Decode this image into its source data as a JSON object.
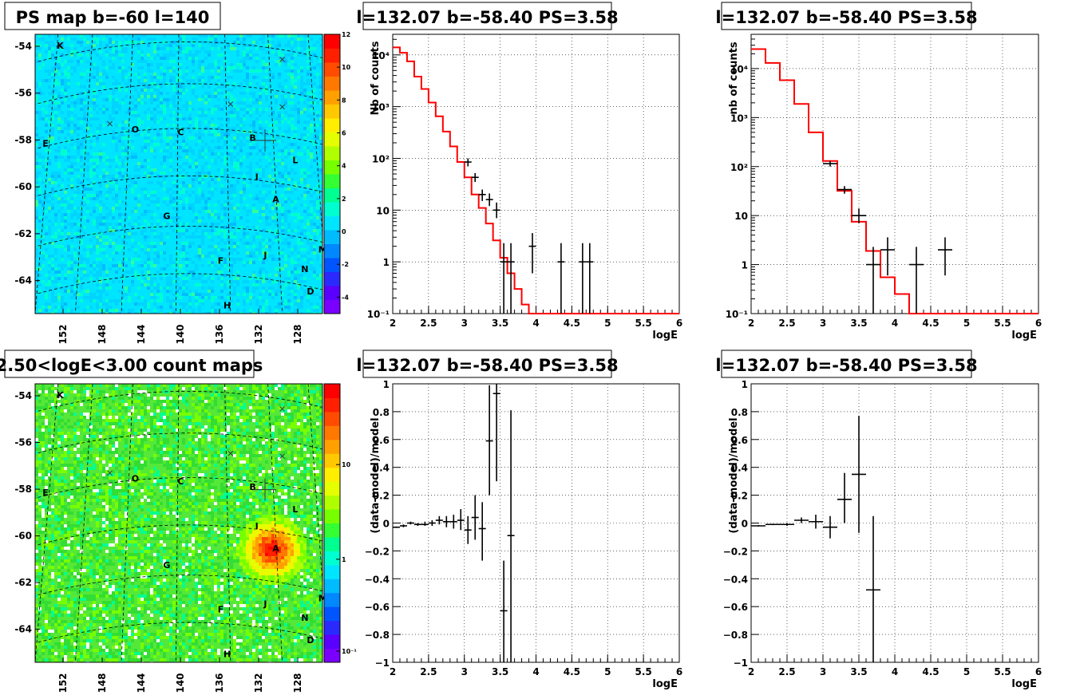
{
  "chart_data": [
    {
      "id": "psmap",
      "type": "heatmap",
      "title": "PS map b=-60 l=140",
      "x_ticks": [
        "152",
        "148",
        "144",
        "140",
        "136",
        "132",
        "128"
      ],
      "y_ticks": [
        "-54",
        "-56",
        "-58",
        "-60",
        "-62",
        "-64"
      ],
      "colorbar_ticks": [
        "12",
        "10",
        "8",
        "6",
        "4",
        "2",
        "0",
        "-2",
        "-4"
      ],
      "sources": [
        "K",
        "O",
        "C",
        "B",
        "E",
        "L",
        "I",
        "A",
        "G",
        "M",
        "F",
        "J",
        "N",
        "D",
        "H"
      ],
      "hot_source": null,
      "scale": "linear",
      "zlim": [
        -5,
        12
      ]
    },
    {
      "id": "countmap",
      "type": "heatmap",
      "title": "2.50<logE<3.00 count maps",
      "x_ticks": [
        "152",
        "148",
        "144",
        "140",
        "136",
        "132",
        "128"
      ],
      "y_ticks": [
        "-54",
        "-56",
        "-58",
        "-60",
        "-62",
        "-64"
      ],
      "colorbar_ticks": [
        "10",
        "1",
        "10⁻¹"
      ],
      "sources": [
        "K",
        "O",
        "C",
        "B",
        "E",
        "L",
        "I",
        "A",
        "G",
        "M",
        "F",
        "J",
        "N",
        "D",
        "H"
      ],
      "hot_source": "A",
      "scale": "log"
    },
    {
      "id": "spec1",
      "type": "line",
      "title": "l=132.07 b=-58.40 PS=3.58",
      "xlabel": "logE",
      "ylabel": "Nb of counts",
      "xlim": [
        2,
        6
      ],
      "ylim": [
        0.1,
        25000
      ],
      "yscale": "log",
      "x_ticks": [
        "2",
        "2.5",
        "3",
        "3.5",
        "4",
        "4.5",
        "5",
        "5.5",
        "6"
      ],
      "y_ticks": [
        "10⁻¹",
        "1",
        "10",
        "10²",
        "10³",
        "10⁴"
      ],
      "model_step": [
        {
          "x0": 2.0,
          "x1": 2.1,
          "y": 14000
        },
        {
          "x0": 2.1,
          "x1": 2.2,
          "y": 11000
        },
        {
          "x0": 2.2,
          "x1": 2.3,
          "y": 7500
        },
        {
          "x0": 2.3,
          "x1": 2.4,
          "y": 3800
        },
        {
          "x0": 2.4,
          "x1": 2.5,
          "y": 2200
        },
        {
          "x0": 2.5,
          "x1": 2.6,
          "y": 1200
        },
        {
          "x0": 2.6,
          "x1": 2.7,
          "y": 650
        },
        {
          "x0": 2.7,
          "x1": 2.8,
          "y": 330
        },
        {
          "x0": 2.8,
          "x1": 2.9,
          "y": 170
        },
        {
          "x0": 2.9,
          "x1": 3.0,
          "y": 85
        },
        {
          "x0": 3.0,
          "x1": 3.1,
          "y": 43
        },
        {
          "x0": 3.1,
          "x1": 3.2,
          "y": 20
        },
        {
          "x0": 3.2,
          "x1": 3.3,
          "y": 11
        },
        {
          "x0": 3.3,
          "x1": 3.4,
          "y": 5.5
        },
        {
          "x0": 3.4,
          "x1": 3.5,
          "y": 2.6
        },
        {
          "x0": 3.5,
          "x1": 3.6,
          "y": 1.2
        },
        {
          "x0": 3.6,
          "x1": 3.7,
          "y": 0.6
        },
        {
          "x0": 3.7,
          "x1": 3.8,
          "y": 0.3
        },
        {
          "x0": 3.8,
          "x1": 3.9,
          "y": 0.15
        },
        {
          "x0": 3.9,
          "x1": 4.0,
          "y": 0.1
        },
        {
          "x0": 4.0,
          "x1": 6.0,
          "y": 0.1
        }
      ],
      "data_points": [
        {
          "x": 3.05,
          "y": 85,
          "xe": 0.05,
          "ylo": 70,
          "yhi": 100
        },
        {
          "x": 3.15,
          "y": 43,
          "xe": 0.05,
          "ylo": 35,
          "yhi": 52
        },
        {
          "x": 3.25,
          "y": 20,
          "xe": 0.05,
          "ylo": 15,
          "yhi": 25
        },
        {
          "x": 3.35,
          "y": 16,
          "xe": 0.05,
          "ylo": 12,
          "yhi": 21
        },
        {
          "x": 3.45,
          "y": 10,
          "xe": 0.05,
          "ylo": 7,
          "yhi": 14
        },
        {
          "x": 3.55,
          "y": 1,
          "xe": 0.05,
          "ylo": 0.1,
          "yhi": 2.3
        },
        {
          "x": 3.65,
          "y": 1,
          "xe": 0.05,
          "ylo": 0.1,
          "yhi": 2.3
        },
        {
          "x": 3.95,
          "y": 2,
          "xe": 0.05,
          "ylo": 0.6,
          "yhi": 3.6
        },
        {
          "x": 4.35,
          "y": 1,
          "xe": 0.05,
          "ylo": 0.1,
          "yhi": 2.3
        },
        {
          "x": 4.65,
          "y": 1,
          "xe": 0.05,
          "ylo": 0.1,
          "yhi": 2.3
        },
        {
          "x": 4.75,
          "y": 1,
          "xe": 0.05,
          "ylo": 0.1,
          "yhi": 2.3
        }
      ]
    },
    {
      "id": "spec2",
      "type": "line",
      "title": "l=132.07 b=-58.40 PS=3.58",
      "xlabel": "logE",
      "ylabel": "nb of counts",
      "xlim": [
        2,
        6
      ],
      "ylim": [
        0.1,
        50000
      ],
      "yscale": "log",
      "x_ticks": [
        "2",
        "2.5",
        "3",
        "3.5",
        "4",
        "4.5",
        "5",
        "5.5",
        "6"
      ],
      "y_ticks": [
        "10⁻¹",
        "1",
        "10",
        "10²",
        "10³",
        "10⁴"
      ],
      "model_step": [
        {
          "x0": 2.0,
          "x1": 2.2,
          "y": 25000
        },
        {
          "x0": 2.2,
          "x1": 2.4,
          "y": 13000
        },
        {
          "x0": 2.4,
          "x1": 2.6,
          "y": 5800
        },
        {
          "x0": 2.6,
          "x1": 2.8,
          "y": 1900
        },
        {
          "x0": 2.8,
          "x1": 3.0,
          "y": 500
        },
        {
          "x0": 3.0,
          "x1": 3.2,
          "y": 130
        },
        {
          "x0": 3.2,
          "x1": 3.4,
          "y": 32
        },
        {
          "x0": 3.4,
          "x1": 3.6,
          "y": 7.5
        },
        {
          "x0": 3.6,
          "x1": 3.8,
          "y": 1.9
        },
        {
          "x0": 3.8,
          "x1": 4.0,
          "y": 0.55
        },
        {
          "x0": 4.0,
          "x1": 4.2,
          "y": 0.25
        },
        {
          "x0": 4.2,
          "x1": 6.0,
          "y": 0.1
        }
      ],
      "data_points": [
        {
          "x": 3.1,
          "y": 115,
          "xe": 0.1,
          "ylo": 100,
          "yhi": 130
        },
        {
          "x": 3.3,
          "y": 34,
          "xe": 0.1,
          "ylo": 28,
          "yhi": 40
        },
        {
          "x": 3.5,
          "y": 10,
          "xe": 0.1,
          "ylo": 7,
          "yhi": 14
        },
        {
          "x": 3.7,
          "y": 1,
          "xe": 0.1,
          "ylo": 0.1,
          "yhi": 2.3
        },
        {
          "x": 3.9,
          "y": 2,
          "xe": 0.1,
          "ylo": 0.6,
          "yhi": 3.6
        },
        {
          "x": 4.3,
          "y": 1,
          "xe": 0.1,
          "ylo": 0.1,
          "yhi": 2.3
        },
        {
          "x": 4.7,
          "y": 2,
          "xe": 0.1,
          "ylo": 0.6,
          "yhi": 3.6
        }
      ]
    },
    {
      "id": "resid1",
      "type": "scatter",
      "title": "l=132.07 b=-58.40 PS=3.58",
      "xlabel": "logE",
      "ylabel": "(data-model)/model",
      "xlim": [
        2,
        6
      ],
      "ylim": [
        -1,
        1
      ],
      "x_ticks": [
        "2",
        "2.5",
        "3",
        "3.5",
        "4",
        "4.5",
        "5",
        "5.5",
        "6"
      ],
      "y_ticks": [
        "−1",
        "−0.8",
        "−0.6",
        "−0.4",
        "−0.2",
        "0",
        "0.2",
        "0.4",
        "0.6",
        "0.8",
        "1"
      ],
      "y_tick_values": [
        -1,
        -0.8,
        -0.6,
        -0.4,
        -0.2,
        0,
        0.2,
        0.4,
        0.6,
        0.8,
        1
      ],
      "data_points": [
        {
          "x": 2.05,
          "y": -0.03,
          "xe": 0.05,
          "ylo": -0.035,
          "yhi": -0.025
        },
        {
          "x": 2.15,
          "y": -0.02,
          "xe": 0.05,
          "ylo": -0.03,
          "yhi": -0.01
        },
        {
          "x": 2.25,
          "y": 0.0,
          "xe": 0.05,
          "ylo": -0.01,
          "yhi": 0.01
        },
        {
          "x": 2.35,
          "y": -0.01,
          "xe": 0.05,
          "ylo": -0.02,
          "yhi": 0.0
        },
        {
          "x": 2.45,
          "y": -0.01,
          "xe": 0.05,
          "ylo": -0.02,
          "yhi": 0.01
        },
        {
          "x": 2.55,
          "y": 0.0,
          "xe": 0.05,
          "ylo": -0.02,
          "yhi": 0.02
        },
        {
          "x": 2.65,
          "y": 0.02,
          "xe": 0.05,
          "ylo": -0.01,
          "yhi": 0.05
        },
        {
          "x": 2.75,
          "y": 0.01,
          "xe": 0.05,
          "ylo": -0.03,
          "yhi": 0.05
        },
        {
          "x": 2.85,
          "y": 0.01,
          "xe": 0.05,
          "ylo": -0.04,
          "yhi": 0.06
        },
        {
          "x": 2.95,
          "y": 0.02,
          "xe": 0.05,
          "ylo": -0.05,
          "yhi": 0.1
        },
        {
          "x": 3.05,
          "y": -0.05,
          "xe": 0.05,
          "ylo": -0.15,
          "yhi": 0.05
        },
        {
          "x": 3.15,
          "y": 0.04,
          "xe": 0.05,
          "ylo": -0.12,
          "yhi": 0.2
        },
        {
          "x": 3.25,
          "y": -0.04,
          "xe": 0.05,
          "ylo": -0.27,
          "yhi": 0.15
        },
        {
          "x": 3.35,
          "y": 0.59,
          "xe": 0.05,
          "ylo": 0.2,
          "yhi": 0.99
        },
        {
          "x": 3.45,
          "y": 0.93,
          "xe": 0.05,
          "ylo": 0.3,
          "yhi": 1.0
        },
        {
          "x": 3.55,
          "y": -0.63,
          "xe": 0.05,
          "ylo": -1.0,
          "yhi": -0.27
        },
        {
          "x": 3.65,
          "y": -0.09,
          "xe": 0.05,
          "ylo": -1.0,
          "yhi": 0.81
        }
      ]
    },
    {
      "id": "resid2",
      "type": "scatter",
      "title": "l=132.07 b=-58.40 PS=3.58",
      "xlabel": "logE",
      "ylabel": "(data-model)/model",
      "xlim": [
        2,
        6
      ],
      "ylim": [
        -1,
        1
      ],
      "x_ticks": [
        "2",
        "2.5",
        "3",
        "3.5",
        "4",
        "4.5",
        "5",
        "5.5",
        "6"
      ],
      "y_ticks": [
        "−1",
        "−0.8",
        "−0.6",
        "−0.4",
        "−0.2",
        "0",
        "0.2",
        "0.4",
        "0.6",
        "0.8",
        "1"
      ],
      "y_tick_values": [
        -1,
        -0.8,
        -0.6,
        -0.4,
        -0.2,
        0,
        0.2,
        0.4,
        0.6,
        0.8,
        1
      ],
      "data_points": [
        {
          "x": 2.1,
          "y": -0.02,
          "xe": 0.1,
          "ylo": -0.025,
          "yhi": -0.015
        },
        {
          "x": 2.3,
          "y": -0.01,
          "xe": 0.1,
          "ylo": -0.015,
          "yhi": -0.005
        },
        {
          "x": 2.5,
          "y": -0.01,
          "xe": 0.1,
          "ylo": -0.02,
          "yhi": 0.0
        },
        {
          "x": 2.7,
          "y": 0.02,
          "xe": 0.1,
          "ylo": 0.0,
          "yhi": 0.04
        },
        {
          "x": 2.9,
          "y": 0.01,
          "xe": 0.1,
          "ylo": -0.04,
          "yhi": 0.06
        },
        {
          "x": 3.1,
          "y": -0.03,
          "xe": 0.1,
          "ylo": -0.11,
          "yhi": 0.05
        },
        {
          "x": 3.3,
          "y": 0.17,
          "xe": 0.1,
          "ylo": 0.0,
          "yhi": 0.36
        },
        {
          "x": 3.5,
          "y": 0.35,
          "xe": 0.1,
          "ylo": -0.07,
          "yhi": 0.77
        },
        {
          "x": 3.7,
          "y": -0.48,
          "xe": 0.1,
          "ylo": -1.0,
          "yhi": 0.05
        }
      ]
    }
  ]
}
